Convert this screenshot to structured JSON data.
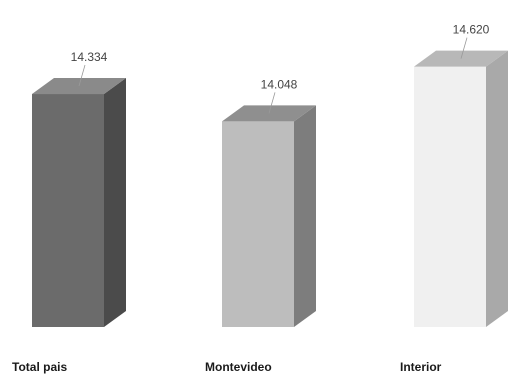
{
  "chart_data": {
    "type": "bar",
    "categories": [
      "Total pais",
      "Montevideo",
      "Interior"
    ],
    "values": [
      14334,
      14048,
      14620
    ],
    "value_labels": [
      "14.334",
      "14.048",
      "14.620"
    ],
    "title": "",
    "xlabel": "",
    "ylabel": "",
    "grid": false,
    "legend": "none",
    "colors": {
      "Total pais": {
        "front": "#6b6b6b",
        "side": "#4b4b4b",
        "top": "#8a8a8a"
      },
      "Montevideo": {
        "front": "#bdbdbd",
        "side": "#7d7d7d",
        "top": "#8f8f8f"
      },
      "Interior": {
        "front": "#f0f0f0",
        "side": "#a9a9a9",
        "top": "#b8b8b8"
      }
    }
  }
}
